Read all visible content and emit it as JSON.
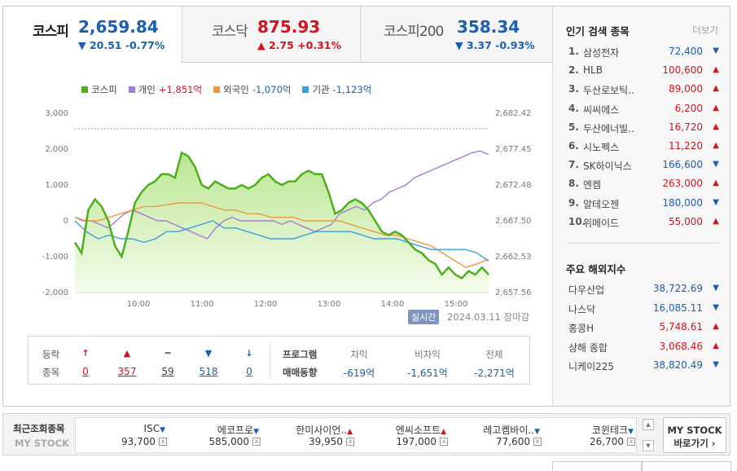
{
  "tabs": [
    {
      "name": "코스피",
      "value": "2,659.84",
      "change": "▼ 20.51 -0.77%",
      "dir": "down"
    },
    {
      "name": "코스닥",
      "value": "875.93",
      "change": "▲ 2.75 +0.31%",
      "dir": "up"
    },
    {
      "name": "코스피200",
      "value": "358.34",
      "change": "▼ 3.37 -0.93%",
      "dir": "down"
    }
  ],
  "legend": [
    {
      "label": "코스피",
      "value": "",
      "color": "#4caf1d"
    },
    {
      "label": "개인",
      "value": "+1,851억",
      "color": "#a77bd6"
    },
    {
      "label": "외국인",
      "value": "-1,070억",
      "color": "#ef9a3e"
    },
    {
      "label": "기관",
      "value": "-1,123억",
      "color": "#3ca0dc"
    }
  ],
  "chart_data": {
    "type": "line",
    "x_ticks": [
      "10:00",
      "11:00",
      "12:00",
      "13:00",
      "14:00",
      "15:00"
    ],
    "y_left_ticks": [
      "3,000",
      "2,000",
      "1,000",
      "0",
      "-1,000",
      "-2,000"
    ],
    "y_right_ticks": [
      "2,682.42",
      "2,677.45",
      "2,672.48",
      "2,667.50",
      "2,662.53",
      "2,657.56"
    ],
    "series": [
      {
        "name": "코스피",
        "color": "#4caf1d",
        "values": [
          -600,
          -900,
          300,
          600,
          400,
          0,
          -700,
          -1000,
          -300,
          500,
          800,
          1000,
          1100,
          1300,
          1300,
          1200,
          1900,
          1800,
          1500,
          1000,
          900,
          1100,
          1000,
          900,
          900,
          1000,
          900,
          1000,
          1200,
          1300,
          1100,
          1000,
          1100,
          1100,
          1300,
          1400,
          1300,
          1300,
          800,
          200,
          300,
          500,
          600,
          500,
          300,
          0,
          -300,
          -400,
          -300,
          -400,
          -600,
          -800,
          -900,
          -1100,
          -1200,
          -1500,
          -1300,
          -1500,
          -1600,
          -1400,
          -1500,
          -1300,
          -1500
        ]
      },
      {
        "name": "개인",
        "color": "#a77bd6",
        "values": [
          100,
          0,
          0,
          -100,
          -200,
          0,
          200,
          300,
          200,
          100,
          0,
          0,
          -100,
          -200,
          -300,
          -400,
          -500,
          -200,
          0,
          100,
          0,
          0,
          0,
          0,
          0,
          -100,
          0,
          -100,
          -200,
          -300,
          -200,
          -100,
          200,
          300,
          400,
          300,
          500,
          600,
          800,
          900,
          1000,
          1200,
          1300,
          1400,
          1500,
          1600,
          1700,
          1800,
          1900,
          1950,
          1851
        ]
      },
      {
        "name": "외국인",
        "color": "#ef9a3e",
        "values": [
          100,
          0,
          0,
          100,
          200,
          300,
          400,
          400,
          450,
          500,
          500,
          500,
          400,
          300,
          300,
          200,
          200,
          100,
          100,
          100,
          0,
          0,
          0,
          0,
          -100,
          -200,
          -300,
          -400,
          -400,
          -500,
          -600,
          -700,
          -900,
          -1100,
          -1300,
          -1200,
          -1070
        ]
      },
      {
        "name": "기관",
        "color": "#3ca0dc",
        "values": [
          0,
          -300,
          -500,
          -400,
          -500,
          -500,
          -600,
          -500,
          -300,
          -300,
          -200,
          -100,
          0,
          -200,
          -200,
          -300,
          -400,
          -500,
          -500,
          -500,
          -400,
          -300,
          -300,
          -300,
          -300,
          -400,
          -500,
          -500,
          -500,
          -600,
          -700,
          -800,
          -800,
          -800,
          -800,
          -900,
          -1123
        ]
      }
    ],
    "ylim": [
      -2000,
      3000
    ]
  },
  "chart_footer": {
    "badge": "실시간",
    "date": "2024.03.11",
    "status": "장마감"
  },
  "stats": {
    "label1": "등락",
    "label2": "종목",
    "items": [
      {
        "arrow": "↑",
        "count": "0",
        "dir": "up"
      },
      {
        "arrow": "▲",
        "count": "357",
        "dir": "up"
      },
      {
        "arrow": "━",
        "count": "59",
        "dir": "flat"
      },
      {
        "arrow": "▼",
        "count": "518",
        "dir": "down"
      },
      {
        "arrow": "↓",
        "count": "0",
        "dir": "down"
      }
    ],
    "program_label1": "프로그램",
    "program_label2": "매매동향",
    "program": [
      {
        "head": "차익",
        "value": "-619억"
      },
      {
        "head": "비차익",
        "value": "-1,651억"
      },
      {
        "head": "전체",
        "value": "-2,271억"
      }
    ]
  },
  "popular": {
    "title": "인기 검색 종목",
    "more": "더보기",
    "items": [
      {
        "rank": "1.",
        "name": "삼성전자",
        "price": "72,400",
        "dir": "down"
      },
      {
        "rank": "2.",
        "name": "HLB",
        "price": "100,600",
        "dir": "up"
      },
      {
        "rank": "3.",
        "name": "두산로보틱..",
        "price": "89,000",
        "dir": "up"
      },
      {
        "rank": "4.",
        "name": "씨씨에스",
        "price": "6,200",
        "dir": "up"
      },
      {
        "rank": "5.",
        "name": "두산에너빌..",
        "price": "16,720",
        "dir": "up"
      },
      {
        "rank": "6.",
        "name": "시노펙스",
        "price": "11,220",
        "dir": "up"
      },
      {
        "rank": "7.",
        "name": "SK하이닉스",
        "price": "166,600",
        "dir": "down"
      },
      {
        "rank": "8.",
        "name": "엔켐",
        "price": "263,000",
        "dir": "up"
      },
      {
        "rank": "9.",
        "name": "알테오젠",
        "price": "180,000",
        "dir": "down"
      },
      {
        "rank": "10.",
        "name": "위메이드",
        "price": "55,000",
        "dir": "up"
      }
    ]
  },
  "global": {
    "title": "주요 해외지수",
    "items": [
      {
        "name": "다우산업",
        "price": "38,722.69",
        "dir": "down"
      },
      {
        "name": "나스닥",
        "price": "16,085.11",
        "dir": "down"
      },
      {
        "name": "홍콩H",
        "price": "5,748.61",
        "dir": "up"
      },
      {
        "name": "상해 종합",
        "price": "3,068.46",
        "dir": "up"
      },
      {
        "name": "니케이225",
        "price": "38,820.49",
        "dir": "down"
      }
    ]
  },
  "recent": {
    "title": "최근조회종목",
    "subtitle": "MY STOCK",
    "items": [
      {
        "name": "ISC",
        "price": "93,700",
        "dir": "down"
      },
      {
        "name": "에코프로",
        "price": "585,000",
        "dir": "down"
      },
      {
        "name": "한미사이언..",
        "price": "39,950",
        "dir": "up"
      },
      {
        "name": "엔씨소프트",
        "price": "197,000",
        "dir": "up"
      },
      {
        "name": "레고켐바이..",
        "price": "77,600",
        "dir": "down"
      },
      {
        "name": "코윈테크",
        "price": "26,700",
        "dir": "down"
      }
    ],
    "mystock_line1": "MY STOCK",
    "mystock_line2": "바로가기 ›"
  },
  "icons": {
    "up": "▲",
    "down": "▼",
    "close": "x",
    "scroll_up": "▲",
    "scroll_down": "▼"
  }
}
